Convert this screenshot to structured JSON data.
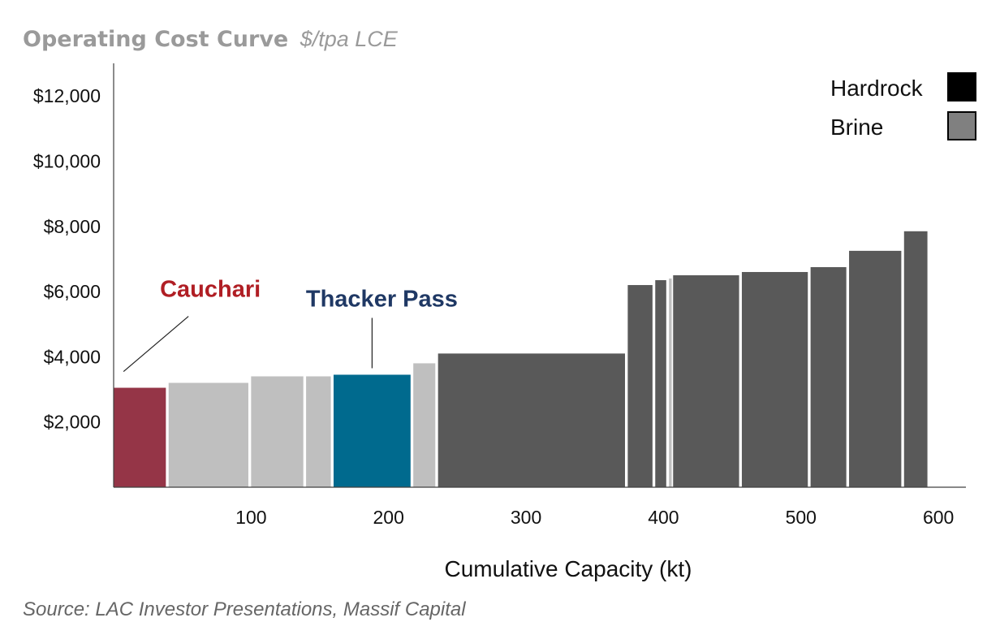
{
  "chart_data": {
    "type": "bar",
    "subtype": "variable-width cost curve",
    "title": "Operating Cost Curve",
    "subtitle": "$/tpa LCE",
    "xlabel": "Cumulative Capacity (kt)",
    "ylabel": "",
    "source": "Source: LAC Investor Presentations, Massif Capital",
    "xlim": [
      0,
      620
    ],
    "ylim": [
      0,
      13000
    ],
    "x_ticks": [
      100,
      200,
      300,
      400,
      500,
      600
    ],
    "x_tick_labels": [
      "100",
      "200",
      "300",
      "400",
      "500",
      "600"
    ],
    "y_ticks": [
      2000,
      4000,
      6000,
      8000,
      10000,
      12000
    ],
    "y_tick_labels": [
      "$2,000",
      "$4,000",
      "$6,000",
      "$8,000",
      "$10,000",
      "$12,000"
    ],
    "grid": false,
    "legend_position": "top-right",
    "legend": [
      {
        "label": "Hardrock",
        "color": "#000000"
      },
      {
        "label": "Brine",
        "color": "#808080"
      }
    ],
    "colors": {
      "brine": "#bfbfbf",
      "hardrock": "#595959",
      "cauchari": "#953547",
      "thacker_pass": "#006a8e",
      "cauchari_label": "#b01e24",
      "thacker_label": "#1f3864"
    },
    "bars": [
      {
        "x0": 0,
        "x1": 38,
        "value": 3050,
        "kind": "cauchari"
      },
      {
        "x0": 40,
        "x1": 98,
        "value": 3200,
        "kind": "brine"
      },
      {
        "x0": 100,
        "x1": 138,
        "value": 3400,
        "kind": "brine"
      },
      {
        "x0": 140,
        "x1": 158,
        "value": 3400,
        "kind": "brine"
      },
      {
        "x0": 160,
        "x1": 216,
        "value": 3450,
        "kind": "thacker_pass"
      },
      {
        "x0": 218,
        "x1": 234,
        "value": 3800,
        "kind": "brine"
      },
      {
        "x0": 236,
        "x1": 372,
        "value": 4100,
        "kind": "hardrock"
      },
      {
        "x0": 374,
        "x1": 392,
        "value": 6200,
        "kind": "hardrock"
      },
      {
        "x0": 394,
        "x1": 402,
        "value": 6350,
        "kind": "hardrock"
      },
      {
        "x0": 404,
        "x1": 406,
        "value": 6400,
        "kind": "brine"
      },
      {
        "x0": 407,
        "x1": 455,
        "value": 6500,
        "kind": "hardrock"
      },
      {
        "x0": 457,
        "x1": 505,
        "value": 6600,
        "kind": "hardrock"
      },
      {
        "x0": 507,
        "x1": 533,
        "value": 6750,
        "kind": "hardrock"
      },
      {
        "x0": 535,
        "x1": 573,
        "value": 7250,
        "kind": "hardrock"
      },
      {
        "x0": 575,
        "x1": 592,
        "value": 7850,
        "kind": "hardrock"
      }
    ],
    "annotations": [
      {
        "label": "Cauchari",
        "target_x": 19,
        "target_value": 3050,
        "color_key": "cauchari_label"
      },
      {
        "label": "Thacker Pass",
        "target_x": 188,
        "target_value": 3450,
        "color_key": "thacker_label"
      }
    ]
  }
}
